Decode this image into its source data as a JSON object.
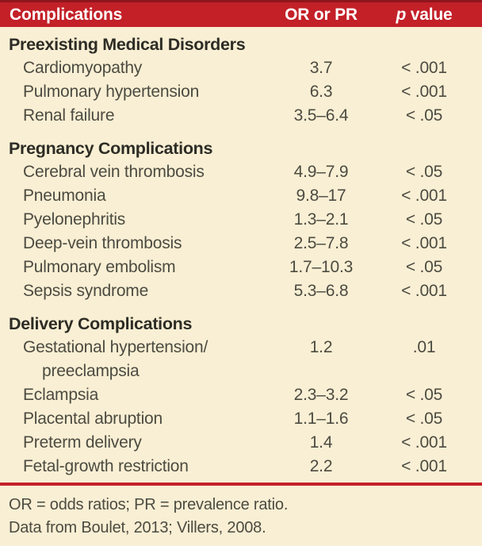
{
  "table": {
    "header": {
      "complications": "Complications",
      "or_pr": "OR or PR",
      "p_italic": "p",
      "p_rest": " value"
    },
    "sections": [
      {
        "title": "Preexisting Medical Disorders",
        "rows": [
          {
            "label": "Cardiomyopathy",
            "or_pr": "3.7",
            "p": "< .001"
          },
          {
            "label": "Pulmonary hypertension",
            "or_pr": "6.3",
            "p": "< .001"
          },
          {
            "label": "Renal failure",
            "or_pr": "3.5–6.4",
            "p": "< .05"
          }
        ]
      },
      {
        "title": "Pregnancy Complications",
        "rows": [
          {
            "label": "Cerebral vein thrombosis",
            "or_pr": "4.9–7.9",
            "p": "< .05"
          },
          {
            "label": "Pneumonia",
            "or_pr": "9.8–17",
            "p": "< .001"
          },
          {
            "label": "Pyelonephritis",
            "or_pr": "1.3–2.1",
            "p": "< .05"
          },
          {
            "label": "Deep-vein thrombosis",
            "or_pr": "2.5–7.8",
            "p": "< .001"
          },
          {
            "label": "Pulmonary embolism",
            "or_pr": "1.7–10.3",
            "p": "< .05"
          },
          {
            "label": "Sepsis syndrome",
            "or_pr": "5.3–6.8",
            "p": "< .001"
          }
        ]
      },
      {
        "title": "Delivery Complications",
        "rows": [
          {
            "label": "Gestational hypertension/",
            "label_line2": "preeclampsia",
            "or_pr": "1.2",
            "p": ".01"
          },
          {
            "label": "Eclampsia",
            "or_pr": "2.3–3.2",
            "p": "< .05"
          },
          {
            "label": "Placental abruption",
            "or_pr": "1.1–1.6",
            "p": "< .05"
          },
          {
            "label": "Preterm delivery",
            "or_pr": "1.4",
            "p": "< .001"
          },
          {
            "label": "Fetal-growth restriction",
            "or_pr": "2.2",
            "p": "< .001"
          }
        ]
      }
    ],
    "footnotes": [
      "OR = odds ratios; PR = prevalence ratio.",
      "Data from Boulet, 2013; Villers, 2008."
    ]
  },
  "colors": {
    "header_red": "#c32028",
    "header_red_dark_edge": "#8f161d",
    "background_cream": "#f9efd4",
    "body_text": "#4c4b41",
    "section_text": "#2d2c25",
    "header_text": "#ffffff"
  },
  "chart_data": {
    "type": "table",
    "columns": [
      "Complications",
      "OR or PR",
      "p value"
    ],
    "rows": [
      [
        "Preexisting Medical Disorders",
        "",
        ""
      ],
      [
        "Cardiomyopathy",
        "3.7",
        "< .001"
      ],
      [
        "Pulmonary hypertension",
        "6.3",
        "< .001"
      ],
      [
        "Renal failure",
        "3.5–6.4",
        "< .05"
      ],
      [
        "Pregnancy Complications",
        "",
        ""
      ],
      [
        "Cerebral vein thrombosis",
        "4.9–7.9",
        "< .05"
      ],
      [
        "Pneumonia",
        "9.8–17",
        "< .001"
      ],
      [
        "Pyelonephritis",
        "1.3–2.1",
        "< .05"
      ],
      [
        "Deep-vein thrombosis",
        "2.5–7.8",
        "< .001"
      ],
      [
        "Pulmonary embolism",
        "1.7–10.3",
        "< .05"
      ],
      [
        "Sepsis syndrome",
        "5.3–6.8",
        "< .001"
      ],
      [
        "Delivery Complications",
        "",
        ""
      ],
      [
        "Gestational hypertension/ preeclampsia",
        "1.2",
        ".01"
      ],
      [
        "Eclampsia",
        "2.3–3.2",
        "< .05"
      ],
      [
        "Placental abruption",
        "1.1–1.6",
        "< .05"
      ],
      [
        "Preterm delivery",
        "1.4",
        "< .001"
      ],
      [
        "Fetal-growth restriction",
        "2.2",
        "< .001"
      ]
    ],
    "footnotes": [
      "OR = odds ratios; PR = prevalence ratio.",
      "Data from Boulet, 2013; Villers, 2008."
    ],
    "layout": {
      "header_background": "#c32028",
      "body_background": "#f9efd4",
      "grid": "off"
    }
  }
}
